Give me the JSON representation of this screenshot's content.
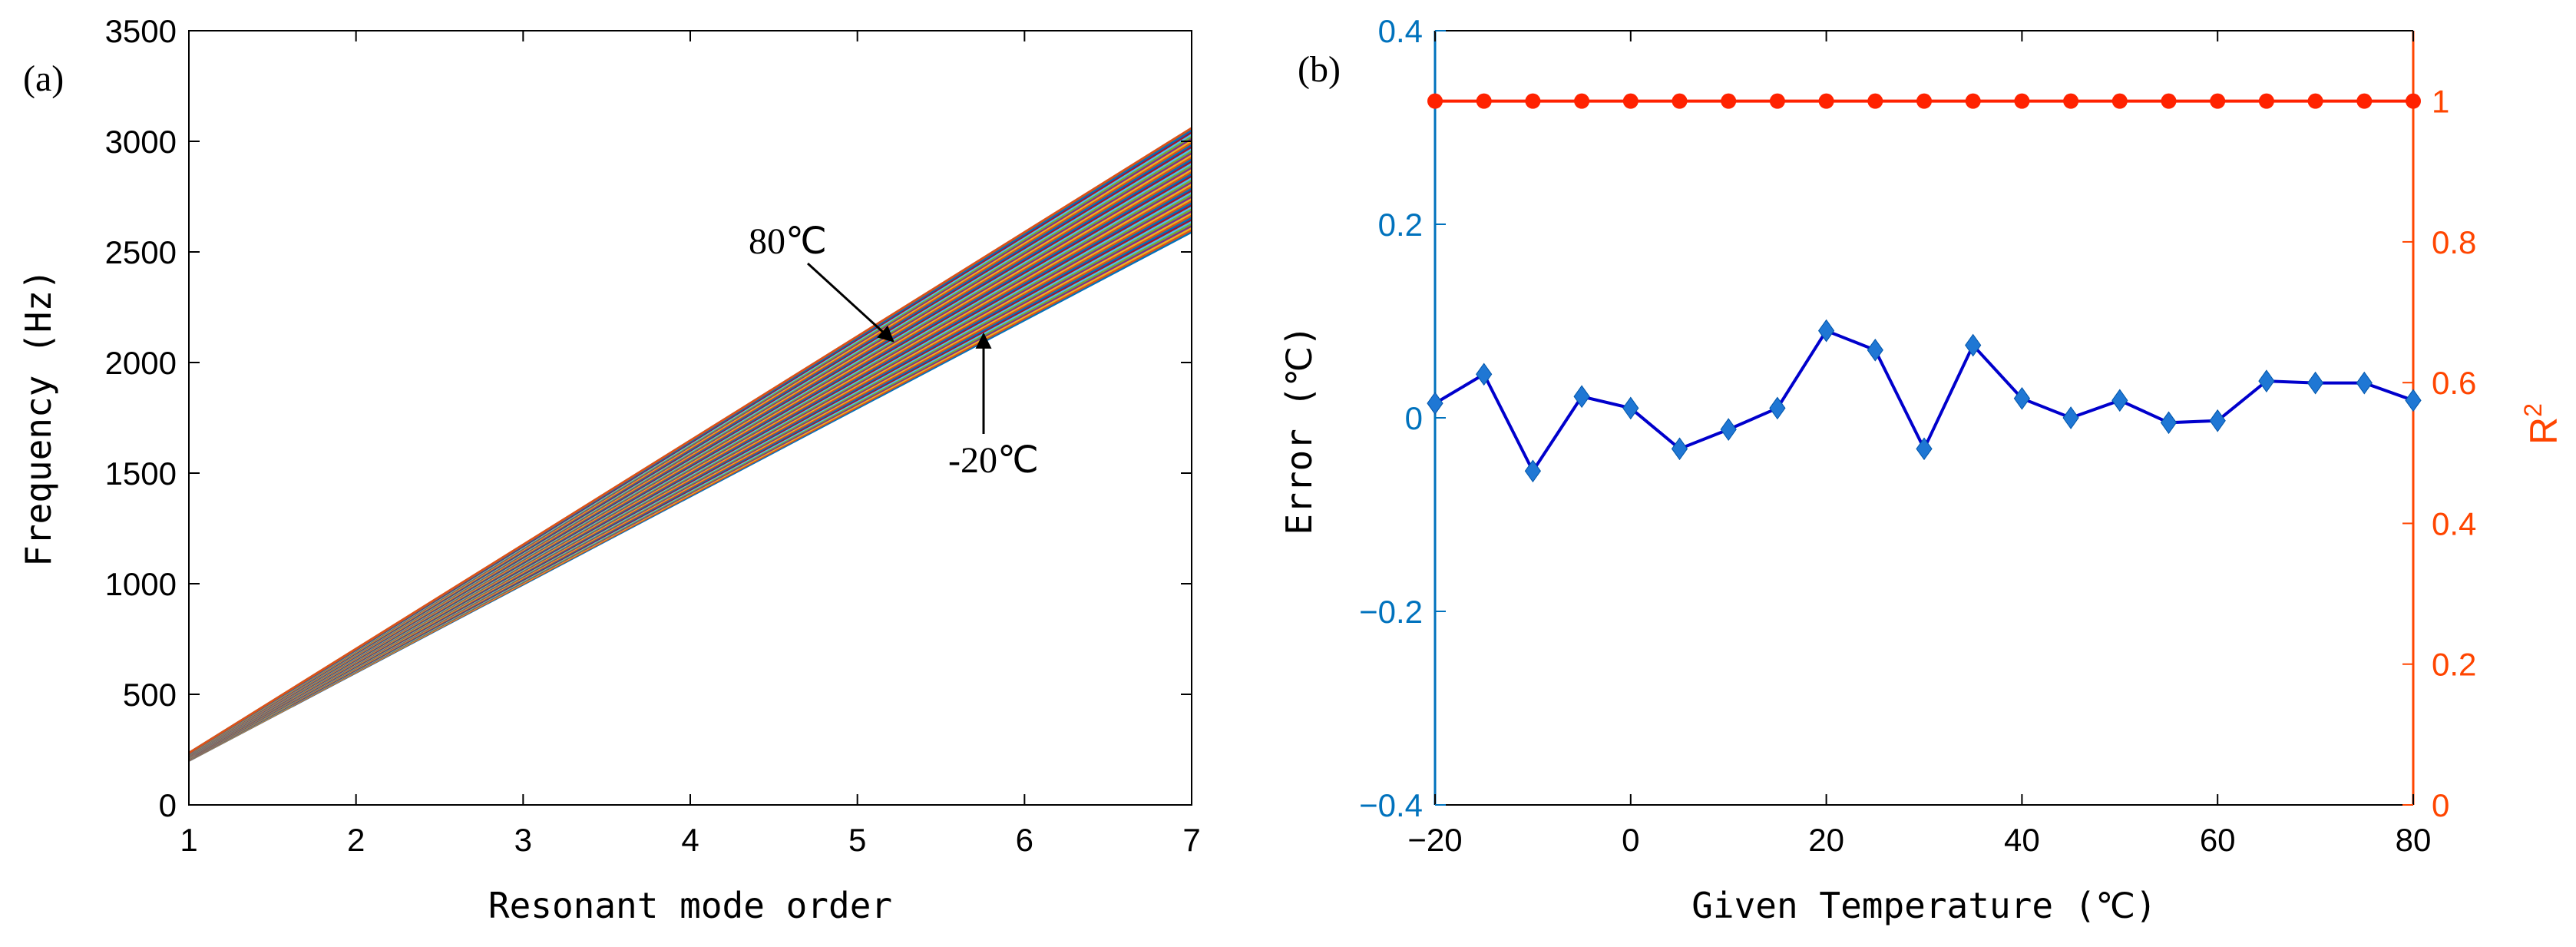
{
  "chart_data": [
    {
      "panel": "(a)",
      "type": "line",
      "xlabel": "Resonant mode order",
      "ylabel": "Frequency  (Hz)",
      "xlim": [
        1,
        7
      ],
      "ylim": [
        0,
        3500
      ],
      "xticks": [
        1,
        2,
        3,
        4,
        5,
        6,
        7
      ],
      "yticks": [
        0,
        500,
        1000,
        1500,
        2000,
        2500,
        3000,
        3500
      ],
      "series_description_temps": [
        -20,
        80
      ],
      "low_line": {
        "x": [
          1,
          7
        ],
        "y": [
          200,
          2590
        ]
      },
      "high_line": {
        "x": [
          1,
          7
        ],
        "y": [
          235,
          3060
        ]
      },
      "num_series": 51,
      "annotations": [
        {
          "text": "80℃",
          "target": {
            "x": 5.25,
            "y": 2270
          }
        },
        {
          "text": "-20℃",
          "target": {
            "x": 5.78,
            "y": 2140
          }
        }
      ],
      "series_colors": [
        "#0072BD",
        "#D95319",
        "#EDB120",
        "#7E2F8E",
        "#77AC30",
        "#4DBEEE",
        "#A2142F"
      ]
    },
    {
      "panel": "(b)",
      "type": "line",
      "xlabel": "Given Temperature (℃)",
      "ylabel_left": "Error  (℃)",
      "ylabel_right": "R",
      "ylabel_right_sup": "2",
      "xlim": [
        -20,
        80
      ],
      "ylim_left": [
        -0.4,
        0.4
      ],
      "ylim_right": [
        0,
        1.1
      ],
      "xticks": [
        -20,
        0,
        20,
        40,
        60,
        80
      ],
      "yticks_left": [
        "-0.4",
        "-0.2",
        "0",
        "0.2",
        "0.4"
      ],
      "yticks_right": [
        "0",
        "0.2",
        "0.4",
        "0.6",
        "0.8",
        "1"
      ],
      "x": [
        -20,
        -15,
        -10,
        -5,
        0,
        5,
        10,
        15,
        20,
        25,
        30,
        35,
        40,
        45,
        50,
        55,
        60,
        65,
        70,
        75,
        80
      ],
      "series": [
        {
          "axis": "left",
          "color": "#0000CC",
          "marker_color": "#1F77D4",
          "values": [
            0.015,
            0.045,
            -0.055,
            0.022,
            0.01,
            -0.032,
            -0.012,
            0.01,
            0.09,
            0.07,
            -0.032,
            0.075,
            0.02,
            0.0,
            0.018,
            -0.005,
            -0.003,
            0.038,
            0.036,
            0.036,
            0.018
          ]
        },
        {
          "axis": "right",
          "color": "#FF2200",
          "values": [
            1,
            1,
            1,
            1,
            1,
            1,
            1,
            1,
            1,
            1,
            1,
            1,
            1,
            1,
            1,
            1,
            1,
            1,
            1,
            1,
            1
          ]
        }
      ]
    }
  ]
}
